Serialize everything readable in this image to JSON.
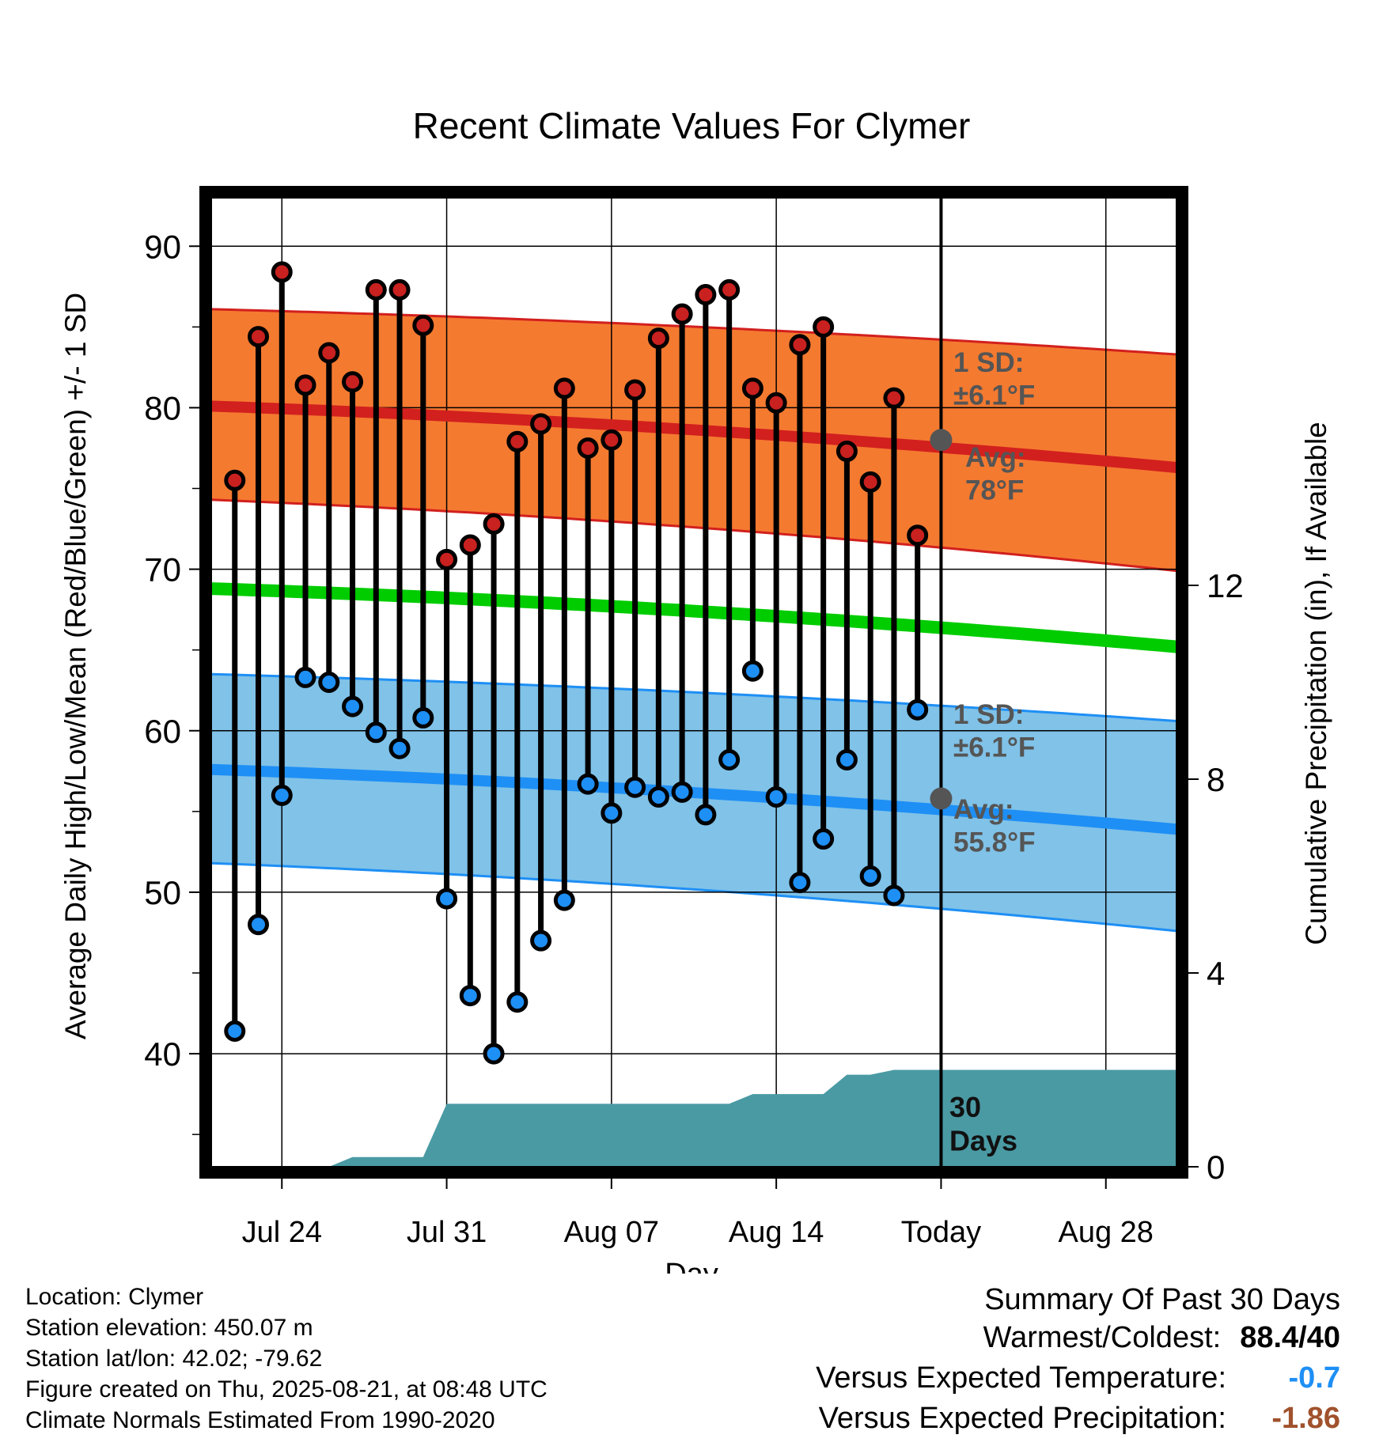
{
  "chart_data": {
    "type": "line",
    "title": "Recent Climate Values For Clymer",
    "xlabel": "Day",
    "ylabel": "Average Daily High/Low/Mean (Red/Blue/Green) +/- 1 SD",
    "y2label": "Cumulative Precipitation (in), If Available",
    "x_ticks": [
      {
        "day": 3,
        "label": "Jul 24"
      },
      {
        "day": 10,
        "label": "Jul 31"
      },
      {
        "day": 17,
        "label": "Aug 07"
      },
      {
        "day": 24,
        "label": "Aug 14"
      },
      {
        "day": 31,
        "label": "Today"
      },
      {
        "day": 38,
        "label": "Aug 28"
      }
    ],
    "xlim": [
      0,
      41
    ],
    "ylim": [
      33,
      93
    ],
    "yticks": [
      40,
      50,
      60,
      70,
      80,
      90
    ],
    "y2lim": [
      0,
      20
    ],
    "y2ticks": [
      0,
      4,
      8,
      12
    ],
    "today_day": 31,
    "days": [
      1,
      2,
      3,
      4,
      5,
      6,
      7,
      8,
      9,
      10,
      11,
      12,
      13,
      14,
      15,
      16,
      17,
      18,
      19,
      20,
      21,
      22,
      23,
      24,
      25,
      26,
      27,
      28,
      29,
      30
    ],
    "series": [
      {
        "name": "High",
        "color": "#c8211f",
        "values": [
          75.5,
          84.4,
          88.4,
          81.4,
          83.4,
          81.6,
          87.3,
          87.3,
          85.1,
          70.6,
          71.5,
          72.8,
          77.9,
          79.0,
          81.2,
          77.5,
          78.0,
          81.1,
          84.3,
          85.8,
          87.0,
          87.3,
          81.2,
          80.3,
          83.9,
          85.0,
          77.3,
          75.4,
          80.6,
          72.1
        ]
      },
      {
        "name": "Low",
        "color": "#1e8ff5",
        "values": [
          41.4,
          48.0,
          56.0,
          63.3,
          63.0,
          61.5,
          59.9,
          58.9,
          60.8,
          49.6,
          43.6,
          40.0,
          43.2,
          47.0,
          49.5,
          56.7,
          54.9,
          56.5,
          55.9,
          56.2,
          54.8,
          58.2,
          63.7,
          55.9,
          50.6,
          53.3,
          58.2,
          51.0,
          49.8,
          61.3
        ]
      }
    ],
    "normals": {
      "high_avg": {
        "start": 80.1,
        "end": 76.3,
        "color": "#d2201e"
      },
      "high_upper": {
        "start": 86.1,
        "end": 83.3
      },
      "high_lower": {
        "start": 74.3,
        "end": 69.9
      },
      "mean_avg": {
        "start": 68.8,
        "end": 65.2,
        "color": "#00cc00"
      },
      "low_avg": {
        "start": 57.6,
        "end": 53.9,
        "color": "#1e8ff5"
      },
      "low_upper": {
        "start": 63.5,
        "end": 60.6
      },
      "low_lower": {
        "start": 51.8,
        "end": 47.6
      }
    },
    "precip": {
      "color": "#4a9aa4",
      "days": [
        1,
        5,
        6,
        9,
        10,
        22,
        23,
        26,
        27,
        28,
        29,
        30,
        31,
        41
      ],
      "values": [
        0,
        0,
        0.2,
        0.2,
        1.3,
        1.3,
        1.5,
        1.5,
        1.9,
        1.9,
        2.0,
        2.0,
        2.0,
        2.0
      ]
    },
    "annotations": {
      "high_sd": [
        "1 SD:",
        "±6.1°F"
      ],
      "high_avg": [
        "Avg:",
        "78°F"
      ],
      "low_sd": [
        "1 SD:",
        "±6.1°F"
      ],
      "low_avg": [
        "Avg:",
        "55.8°F"
      ],
      "precip_label": [
        "30",
        "Days"
      ]
    },
    "today_markers": {
      "high": 78.0,
      "low": 55.8
    },
    "colors": {
      "high_band": "#f47a30",
      "low_band": "#80c2e8",
      "frame": "#000000"
    }
  },
  "footer": {
    "location": "Location: Clymer",
    "elevation": "Station elevation: 450.07 m",
    "latlon": "Station lat/lon: 42.02; -79.62",
    "created": "Figure created on Thu, 2025-08-21, at 08:48 UTC",
    "normals": "Climate Normals Estimated From 1990-2020"
  },
  "summary": {
    "title": "Summary Of Past 30 Days",
    "warmest_label": "Warmest/Coldest:",
    "warmest_value": "88.4/40",
    "temp_label": "Versus Expected Temperature:",
    "temp_value": "-0.7",
    "temp_color": "#1e8ff5",
    "precip_label": "Versus Expected Precipitation:",
    "precip_value": "-1.86",
    "precip_color": "#a0522d"
  }
}
